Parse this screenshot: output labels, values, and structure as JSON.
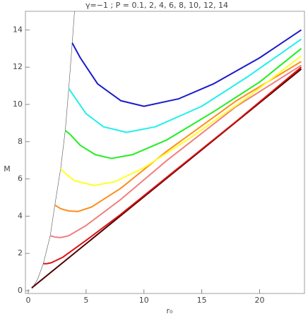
{
  "chart_data": {
    "type": "line",
    "title": "γ=−1 ;    P = 0.1, 2, 4, 6, 8, 10, 12, 14",
    "x_label": "r₀",
    "y_label": "M",
    "xlim": [
      0,
      24
    ],
    "ylim": [
      0,
      15
    ],
    "xticks": [
      0,
      5,
      10,
      15,
      20
    ],
    "yticks": [
      0,
      2,
      4,
      6,
      8,
      10,
      12,
      14
    ],
    "grid": false,
    "series": [
      {
        "color": "#555555",
        "width": 0.6,
        "x": [
          0.3,
          0.8,
          1.3,
          1.9,
          2.3,
          2.8,
          3.2,
          3.5,
          3.8,
          4.0
        ],
        "values": [
          0.1,
          0.6,
          1.45,
          2.95,
          4.6,
          6.55,
          8.6,
          10.85,
          13.3,
          15
        ]
      },
      {
        "color": "#500000",
        "width": 2,
        "x": [
          0.3,
          23.6
        ],
        "values": [
          0.15,
          11.9
        ]
      },
      {
        "color": "#dd1111",
        "width": 2,
        "x": [
          1.3,
          1.6,
          2,
          3,
          5,
          8,
          12,
          18,
          23.6
        ],
        "values": [
          1.45,
          1.45,
          1.5,
          1.8,
          2.7,
          4.1,
          6.1,
          9.1,
          12.0
        ]
      },
      {
        "color": "#f08080",
        "width": 2,
        "x": [
          1.9,
          2.3,
          2.8,
          3.5,
          5,
          8,
          12,
          18,
          23.6
        ],
        "values": [
          2.95,
          2.88,
          2.85,
          2.95,
          3.5,
          4.9,
          7.0,
          9.9,
          12.1
        ]
      },
      {
        "color": "#ff8c1a",
        "width": 2,
        "x": [
          2.3,
          2.8,
          3.5,
          4.3,
          5.5,
          8,
          12,
          18,
          23.6
        ],
        "values": [
          4.6,
          4.4,
          4.28,
          4.25,
          4.5,
          5.5,
          7.5,
          10.2,
          12.3
        ]
      },
      {
        "color": "#ffff22",
        "width": 2,
        "x": [
          2.8,
          3.2,
          4,
          5.7,
          7.5,
          10,
          14,
          19,
          23.6
        ],
        "values": [
          6.55,
          6.3,
          5.9,
          5.65,
          5.85,
          6.6,
          8.2,
          10.4,
          12.6
        ]
      },
      {
        "color": "#22ee22",
        "width": 2,
        "x": [
          3.2,
          3.6,
          4.5,
          5.8,
          7.2,
          9,
          12,
          16,
          20,
          23.6
        ],
        "values": [
          8.6,
          8.4,
          7.8,
          7.3,
          7.1,
          7.3,
          8.1,
          9.6,
          11.2,
          13.0
        ]
      },
      {
        "color": "#22eeee",
        "width": 2,
        "x": [
          3.5,
          4,
          5,
          6.5,
          8.5,
          11,
          15,
          19,
          23.6
        ],
        "values": [
          10.85,
          10.4,
          9.5,
          8.8,
          8.5,
          8.8,
          9.9,
          11.5,
          13.5
        ]
      },
      {
        "color": "#1a1acc",
        "width": 2,
        "x": [
          3.8,
          4.5,
          6,
          8,
          10,
          13,
          16,
          20,
          23.6
        ],
        "values": [
          13.3,
          12.5,
          11.1,
          10.2,
          9.9,
          10.3,
          11.1,
          12.5,
          14.0
        ]
      }
    ]
  }
}
